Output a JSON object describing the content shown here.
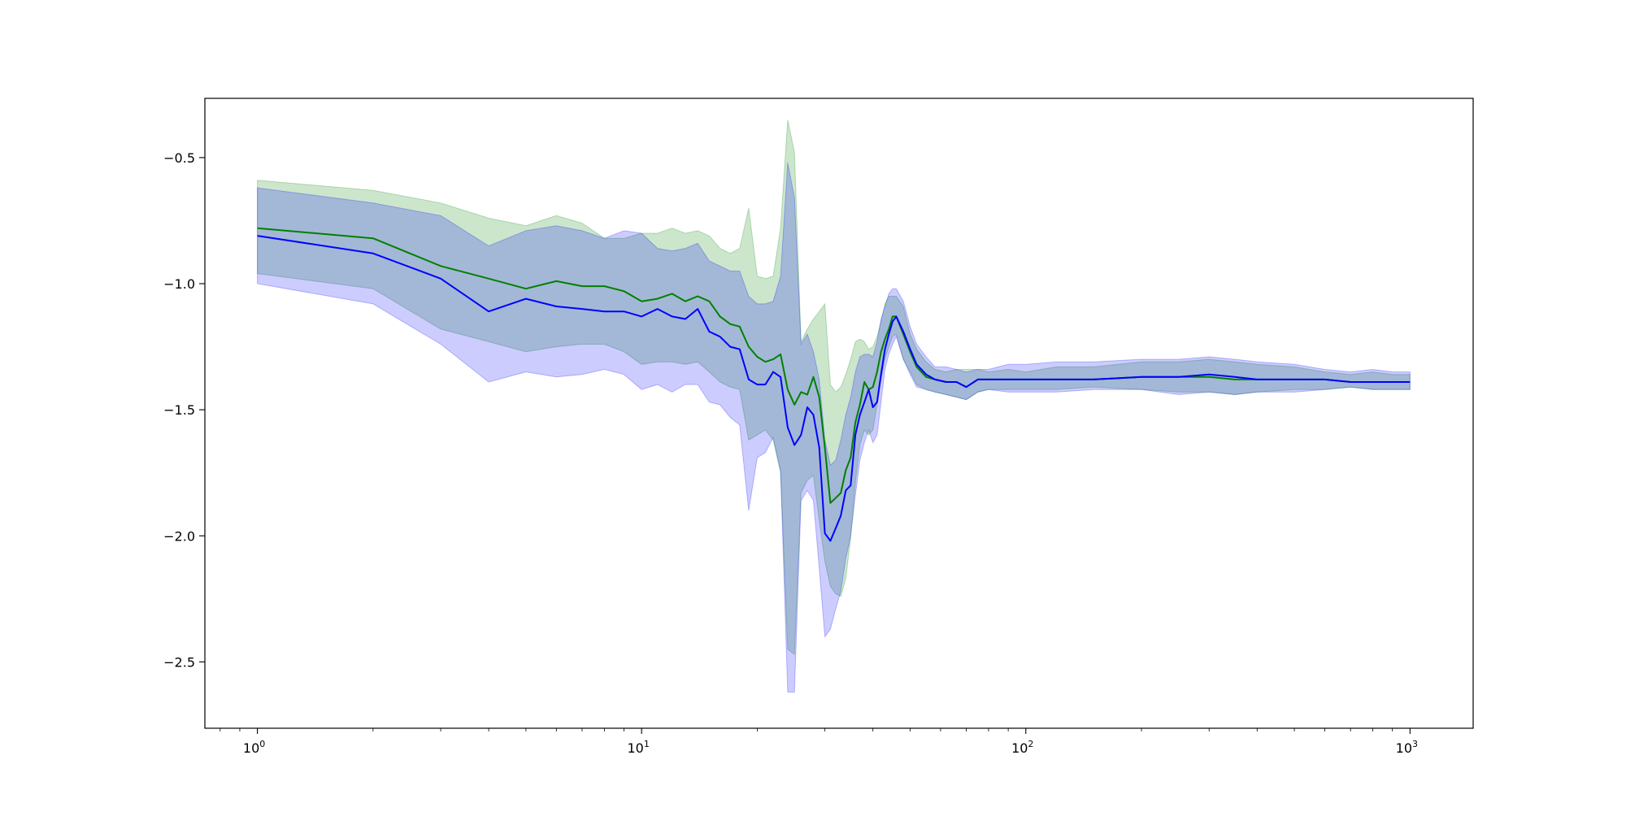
{
  "chart_data": {
    "type": "line",
    "title": "",
    "xlabel": "",
    "ylabel": "",
    "xscale": "log",
    "xlim": [
      0.73,
      1460
    ],
    "ylim": [
      -2.763,
      -0.265
    ],
    "grid": false,
    "legend": "none",
    "x_ticks": [
      {
        "value": 1,
        "label": "10",
        "exp": "0"
      },
      {
        "value": 10,
        "label": "10",
        "exp": "1"
      },
      {
        "value": 100,
        "label": "10",
        "exp": "2"
      },
      {
        "value": 1000,
        "label": "10",
        "exp": "3"
      }
    ],
    "y_ticks": [
      {
        "value": -0.5,
        "label": "−0.5"
      },
      {
        "value": -1.0,
        "label": "−1.0"
      },
      {
        "value": -1.5,
        "label": "−1.5"
      },
      {
        "value": -2.0,
        "label": "−2.0"
      },
      {
        "value": -2.5,
        "label": "−2.5"
      }
    ],
    "series": [
      {
        "color": "#008000",
        "band_color": "#008000",
        "band_opacity": 0.2,
        "x": [
          1,
          2,
          3,
          4,
          5,
          6,
          7,
          8,
          9,
          10,
          11,
          12,
          13,
          14,
          15,
          16,
          17,
          18,
          19,
          20,
          21,
          22,
          23,
          24,
          25,
          26,
          27,
          28,
          29,
          30,
          31,
          32,
          33,
          34,
          35,
          36,
          37,
          38,
          39,
          40,
          41,
          42,
          43,
          44,
          45,
          46,
          48,
          50,
          52,
          55,
          58,
          62,
          66,
          70,
          75,
          80,
          90,
          100,
          120,
          150,
          200,
          250,
          300,
          350,
          400,
          500,
          600,
          700,
          800,
          900,
          1000
        ],
        "y": [
          -0.78,
          -0.82,
          -0.93,
          -0.98,
          -1.02,
          -0.99,
          -1.01,
          -1.01,
          -1.03,
          -1.07,
          -1.06,
          -1.04,
          -1.07,
          -1.05,
          -1.07,
          -1.13,
          -1.16,
          -1.17,
          -1.25,
          -1.29,
          -1.31,
          -1.3,
          -1.28,
          -1.42,
          -1.48,
          -1.43,
          -1.44,
          -1.37,
          -1.45,
          -1.65,
          -1.87,
          -1.85,
          -1.83,
          -1.74,
          -1.69,
          -1.55,
          -1.48,
          -1.39,
          -1.42,
          -1.41,
          -1.35,
          -1.27,
          -1.22,
          -1.18,
          -1.13,
          -1.13,
          -1.2,
          -1.27,
          -1.33,
          -1.37,
          -1.38,
          -1.39,
          -1.39,
          -1.41,
          -1.38,
          -1.38,
          -1.38,
          -1.38,
          -1.38,
          -1.38,
          -1.37,
          -1.37,
          -1.37,
          -1.38,
          -1.38,
          -1.38,
          -1.38,
          -1.39,
          -1.39,
          -1.39,
          -1.39
        ],
        "upper": [
          -0.59,
          -0.63,
          -0.68,
          -0.74,
          -0.77,
          -0.73,
          -0.76,
          -0.82,
          -0.82,
          -0.8,
          -0.8,
          -0.78,
          -0.8,
          -0.79,
          -0.81,
          -0.86,
          -0.88,
          -0.86,
          -0.7,
          -0.97,
          -0.98,
          -0.97,
          -0.78,
          -0.35,
          -0.48,
          -1.23,
          -1.18,
          -1.14,
          -1.11,
          -1.08,
          -1.4,
          -1.43,
          -1.41,
          -1.36,
          -1.3,
          -1.23,
          -1.22,
          -1.23,
          -1.26,
          -1.25,
          -1.21,
          -1.15,
          -1.08,
          -1.05,
          -1.05,
          -1.05,
          -1.09,
          -1.2,
          -1.26,
          -1.31,
          -1.34,
          -1.35,
          -1.34,
          -1.34,
          -1.34,
          -1.35,
          -1.34,
          -1.35,
          -1.33,
          -1.33,
          -1.31,
          -1.31,
          -1.3,
          -1.31,
          -1.32,
          -1.33,
          -1.35,
          -1.36,
          -1.35,
          -1.36,
          -1.36
        ],
        "lower": [
          -0.96,
          -1.02,
          -1.18,
          -1.23,
          -1.27,
          -1.25,
          -1.24,
          -1.24,
          -1.27,
          -1.32,
          -1.31,
          -1.31,
          -1.32,
          -1.31,
          -1.35,
          -1.39,
          -1.41,
          -1.42,
          -1.62,
          -1.6,
          -1.58,
          -1.62,
          -1.75,
          -2.45,
          -2.47,
          -1.83,
          -1.78,
          -1.76,
          -1.94,
          -2.1,
          -2.2,
          -2.23,
          -2.24,
          -2.17,
          -2.01,
          -1.79,
          -1.64,
          -1.58,
          -1.6,
          -1.58,
          -1.48,
          -1.38,
          -1.3,
          -1.25,
          -1.21,
          -1.2,
          -1.3,
          -1.35,
          -1.4,
          -1.42,
          -1.43,
          -1.44,
          -1.45,
          -1.46,
          -1.43,
          -1.42,
          -1.42,
          -1.42,
          -1.42,
          -1.41,
          -1.42,
          -1.43,
          -1.43,
          -1.44,
          -1.43,
          -1.42,
          -1.42,
          -1.41,
          -1.42,
          -1.42,
          -1.42
        ]
      },
      {
        "color": "#0000ff",
        "band_color": "#0000ff",
        "band_opacity": 0.2,
        "x": [
          1,
          2,
          3,
          4,
          5,
          6,
          7,
          8,
          9,
          10,
          11,
          12,
          13,
          14,
          15,
          16,
          17,
          18,
          19,
          20,
          21,
          22,
          23,
          24,
          25,
          26,
          27,
          28,
          29,
          30,
          31,
          32,
          33,
          34,
          35,
          36,
          37,
          38,
          39,
          40,
          41,
          42,
          43,
          44,
          45,
          46,
          48,
          50,
          52,
          55,
          58,
          62,
          66,
          70,
          75,
          80,
          90,
          100,
          120,
          150,
          200,
          250,
          300,
          350,
          400,
          500,
          600,
          700,
          800,
          900,
          1000
        ],
        "y": [
          -0.81,
          -0.88,
          -0.98,
          -1.11,
          -1.06,
          -1.09,
          -1.1,
          -1.11,
          -1.11,
          -1.13,
          -1.1,
          -1.13,
          -1.14,
          -1.1,
          -1.19,
          -1.21,
          -1.25,
          -1.26,
          -1.38,
          -1.4,
          -1.4,
          -1.35,
          -1.37,
          -1.57,
          -1.64,
          -1.6,
          -1.49,
          -1.52,
          -1.65,
          -1.99,
          -2.02,
          -1.97,
          -1.92,
          -1.82,
          -1.8,
          -1.6,
          -1.52,
          -1.47,
          -1.42,
          -1.49,
          -1.47,
          -1.36,
          -1.26,
          -1.2,
          -1.15,
          -1.13,
          -1.19,
          -1.26,
          -1.32,
          -1.36,
          -1.38,
          -1.39,
          -1.39,
          -1.41,
          -1.38,
          -1.38,
          -1.38,
          -1.38,
          -1.38,
          -1.38,
          -1.37,
          -1.37,
          -1.36,
          -1.37,
          -1.38,
          -1.38,
          -1.38,
          -1.39,
          -1.39,
          -1.39,
          -1.39
        ],
        "upper": [
          -0.62,
          -0.68,
          -0.73,
          -0.85,
          -0.79,
          -0.77,
          -0.79,
          -0.82,
          -0.79,
          -0.8,
          -0.86,
          -0.87,
          -0.86,
          -0.84,
          -0.91,
          -0.93,
          -0.95,
          -0.95,
          -1.05,
          -1.08,
          -1.08,
          -1.07,
          -0.97,
          -0.52,
          -0.66,
          -1.24,
          -1.2,
          -1.27,
          -1.38,
          -1.62,
          -1.72,
          -1.7,
          -1.62,
          -1.52,
          -1.45,
          -1.35,
          -1.29,
          -1.28,
          -1.28,
          -1.29,
          -1.23,
          -1.14,
          -1.09,
          -1.04,
          -1.02,
          -1.02,
          -1.07,
          -1.17,
          -1.24,
          -1.29,
          -1.33,
          -1.33,
          -1.34,
          -1.35,
          -1.34,
          -1.34,
          -1.32,
          -1.32,
          -1.31,
          -1.31,
          -1.3,
          -1.3,
          -1.29,
          -1.3,
          -1.31,
          -1.32,
          -1.34,
          -1.35,
          -1.34,
          -1.35,
          -1.35
        ],
        "lower": [
          -1.0,
          -1.08,
          -1.24,
          -1.39,
          -1.35,
          -1.37,
          -1.36,
          -1.34,
          -1.36,
          -1.42,
          -1.4,
          -1.43,
          -1.4,
          -1.4,
          -1.47,
          -1.48,
          -1.53,
          -1.56,
          -1.9,
          -1.69,
          -1.67,
          -1.61,
          -1.74,
          -2.62,
          -2.62,
          -1.86,
          -1.82,
          -1.86,
          -2.13,
          -2.4,
          -2.37,
          -2.29,
          -2.22,
          -2.09,
          -2.0,
          -1.84,
          -1.7,
          -1.63,
          -1.58,
          -1.63,
          -1.6,
          -1.47,
          -1.34,
          -1.28,
          -1.24,
          -1.21,
          -1.3,
          -1.36,
          -1.41,
          -1.42,
          -1.43,
          -1.44,
          -1.45,
          -1.46,
          -1.43,
          -1.42,
          -1.43,
          -1.43,
          -1.43,
          -1.42,
          -1.42,
          -1.44,
          -1.43,
          -1.44,
          -1.43,
          -1.43,
          -1.42,
          -1.41,
          -1.42,
          -1.42,
          -1.42
        ]
      }
    ]
  }
}
